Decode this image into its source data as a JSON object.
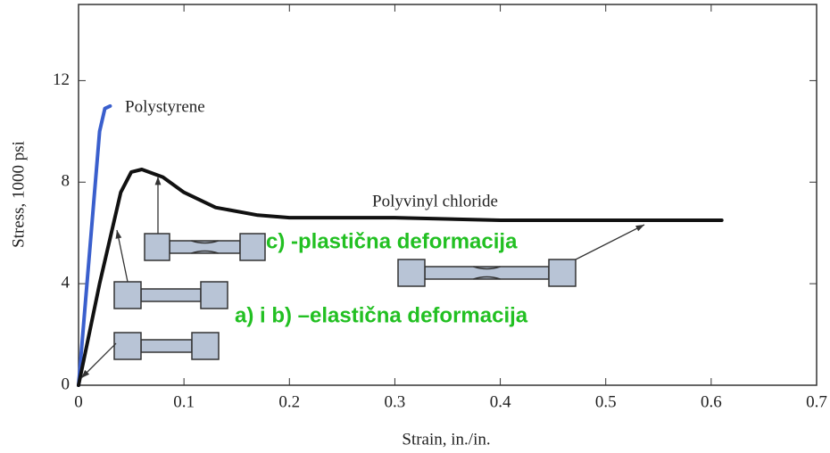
{
  "chart_data": {
    "type": "line",
    "xlabel": "Strain, in./in.",
    "ylabel": "Stress, 1000 psi",
    "xlim": [
      0,
      0.7
    ],
    "ylim": [
      0,
      15
    ],
    "xticks": [
      0,
      0.1,
      0.2,
      0.3,
      0.4,
      0.5,
      0.6,
      0.7
    ],
    "yticks": [
      0,
      4,
      8,
      12
    ],
    "series": [
      {
        "name": "Polystyrene",
        "color": "#3a5fcd",
        "x": [
          0,
          0.01,
          0.02,
          0.025,
          0.03
        ],
        "values": [
          0,
          5,
          10,
          10.9,
          11
        ]
      },
      {
        "name": "Polyvinyl chloride",
        "color": "#111111",
        "x": [
          0,
          0.02,
          0.04,
          0.05,
          0.06,
          0.08,
          0.1,
          0.13,
          0.17,
          0.2,
          0.3,
          0.4,
          0.5,
          0.61
        ],
        "values": [
          0,
          4,
          7.6,
          8.4,
          8.5,
          8.2,
          7.6,
          7.0,
          6.7,
          6.6,
          6.6,
          6.5,
          6.5,
          6.5
        ]
      }
    ],
    "annotations": [
      "c) -plastična deformacija",
      "a) i b) –elastična deformacija"
    ]
  }
}
